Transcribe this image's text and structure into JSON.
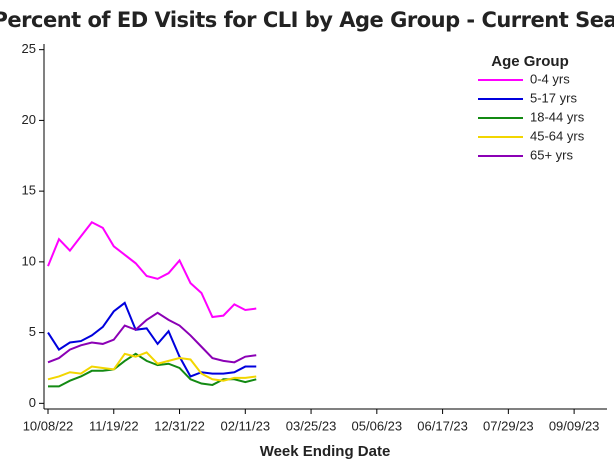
{
  "chart_data": {
    "type": "line",
    "title": "Percent of ED Visits for CLI by Age Group - Current Season",
    "x_label": "Week Ending Date",
    "legend_title": "Age Group",
    "legend_position": "upper right",
    "x": [
      "10/08/22",
      "10/15/22",
      "10/22/22",
      "10/29/22",
      "11/05/22",
      "11/12/22",
      "11/19/22",
      "11/26/22",
      "12/03/22",
      "12/10/22",
      "12/17/22",
      "12/24/22",
      "12/31/22",
      "01/07/23",
      "01/14/23",
      "01/21/23",
      "01/28/23",
      "02/04/23",
      "02/11/23",
      "02/18/23"
    ],
    "series": [
      {
        "name": "0-4 yrs",
        "color": "#ff00ff",
        "values": [
          9.7,
          11.6,
          10.8,
          11.8,
          12.8,
          12.4,
          11.1,
          10.5,
          9.9,
          9.0,
          8.8,
          9.2,
          10.1,
          8.5,
          7.8,
          6.1,
          6.2,
          7.0,
          6.6,
          6.7
        ]
      },
      {
        "name": "5-17 yrs",
        "color": "#0000dd",
        "values": [
          5.0,
          3.8,
          4.3,
          4.4,
          4.8,
          5.4,
          6.5,
          7.1,
          5.2,
          5.3,
          4.2,
          5.1,
          3.3,
          1.9,
          2.2,
          2.1,
          2.1,
          2.2,
          2.6,
          2.6
        ]
      },
      {
        "name": "18-44 yrs",
        "color": "#138a13",
        "values": [
          1.2,
          1.2,
          1.6,
          1.9,
          2.3,
          2.3,
          2.4,
          3.0,
          3.5,
          3.0,
          2.7,
          2.8,
          2.5,
          1.7,
          1.4,
          1.3,
          1.7,
          1.7,
          1.5,
          1.7
        ]
      },
      {
        "name": "45-64 yrs",
        "color": "#f2d600",
        "values": [
          1.7,
          1.9,
          2.2,
          2.1,
          2.6,
          2.5,
          2.4,
          3.5,
          3.3,
          3.6,
          2.8,
          3.0,
          3.2,
          3.1,
          2.1,
          1.7,
          1.6,
          1.8,
          1.8,
          1.9
        ]
      },
      {
        "name": "65+ yrs",
        "color": "#8b00b5",
        "values": [
          2.9,
          3.2,
          3.8,
          4.1,
          4.3,
          4.2,
          4.5,
          5.5,
          5.2,
          5.9,
          6.4,
          5.9,
          5.5,
          4.8,
          4.0,
          3.2,
          3.0,
          2.9,
          3.3,
          3.4
        ]
      }
    ],
    "xlim": [
      "10/08/22",
      "09/30/23"
    ],
    "xticks": [
      "10/08/22",
      "11/19/22",
      "12/31/22",
      "02/11/23",
      "03/25/23",
      "05/06/23",
      "06/17/23",
      "07/29/23",
      "09/09/23"
    ],
    "ylim": [
      -0.4,
      25.4
    ],
    "yticks": [
      0,
      5,
      10,
      15,
      20,
      25
    ],
    "grid": false
  }
}
